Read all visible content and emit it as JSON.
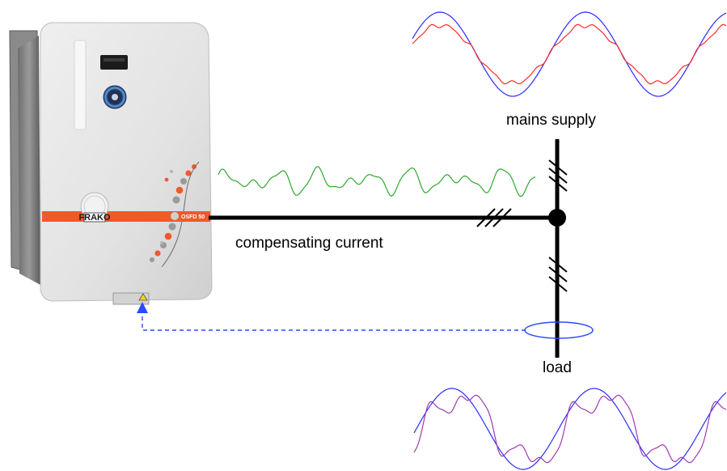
{
  "labels": {
    "mains_supply": "mains supply",
    "compensating_current": "compensating current",
    "load": "load"
  },
  "device": {
    "brand": "FRAKO",
    "model": "OSFD 50",
    "accent_color": "#ee5a2a",
    "body_color": "#e4e4e4"
  },
  "colors": {
    "line": "#000000",
    "voltage_wave": "#2b2bff",
    "mains_current_wave": "#ff2b2b",
    "compensating_wave": "#2ea82e",
    "load_current_wave": "#a03ab0",
    "sensor_link": "#2b4bff"
  },
  "waveforms": {
    "mains_voltage": "sine",
    "mains_current": "near-sine with small ripple",
    "compensating_current": "harmonic distortion",
    "load_voltage": "sine",
    "load_current": "distorted non-sinusoidal"
  }
}
